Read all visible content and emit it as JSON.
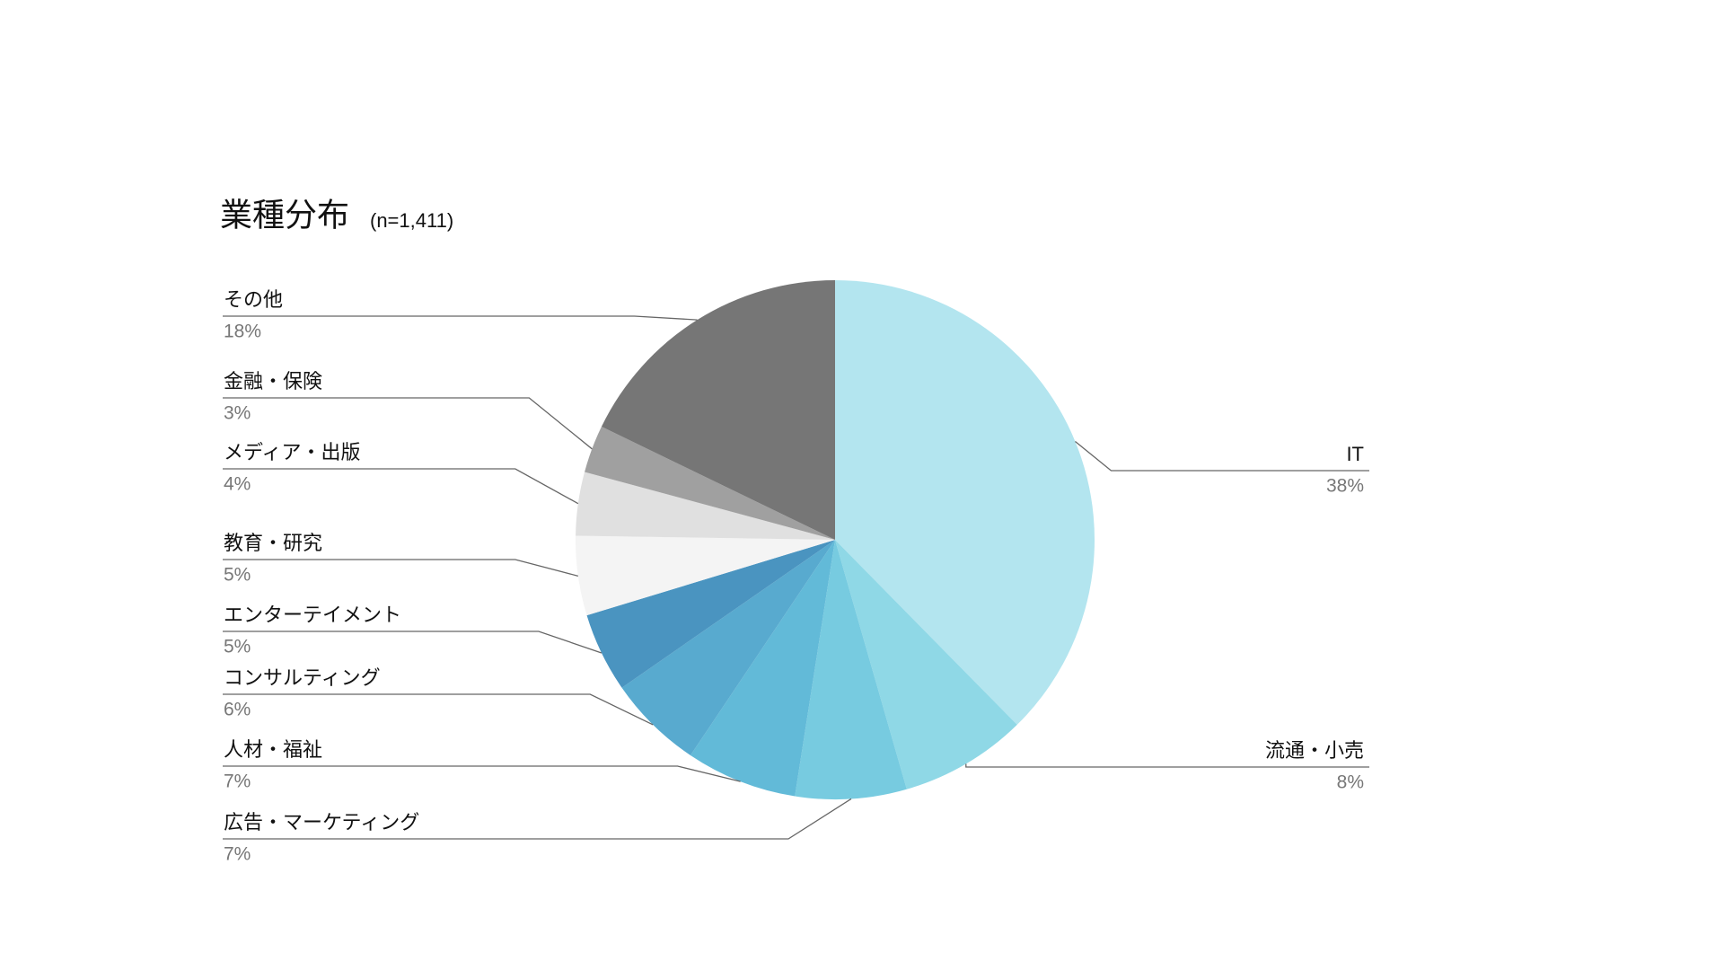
{
  "chart_data": {
    "type": "pie",
    "title": "業種分布",
    "subtitle": "(n=1,411)",
    "categories": [
      "IT",
      "流通・小売",
      "広告・マーケティング",
      "人材・福祉",
      "コンサルティング",
      "エンターテイメント",
      "教育・研究",
      "メディア・出版",
      "金融・保険",
      "その他"
    ],
    "values": [
      38,
      8,
      7,
      7,
      6,
      5,
      5,
      4,
      3,
      18
    ],
    "value_labels": [
      "38%",
      "8%",
      "7%",
      "7%",
      "6%",
      "5%",
      "5%",
      "4%",
      "3%",
      "18%"
    ],
    "colors": [
      "#b3e5ef",
      "#8fd8e6",
      "#77cbe0",
      "#62bad8",
      "#58aacf",
      "#4a94c0",
      "#f4f4f4",
      "#e0e0e0",
      "#a0a0a0",
      "#767676"
    ]
  }
}
